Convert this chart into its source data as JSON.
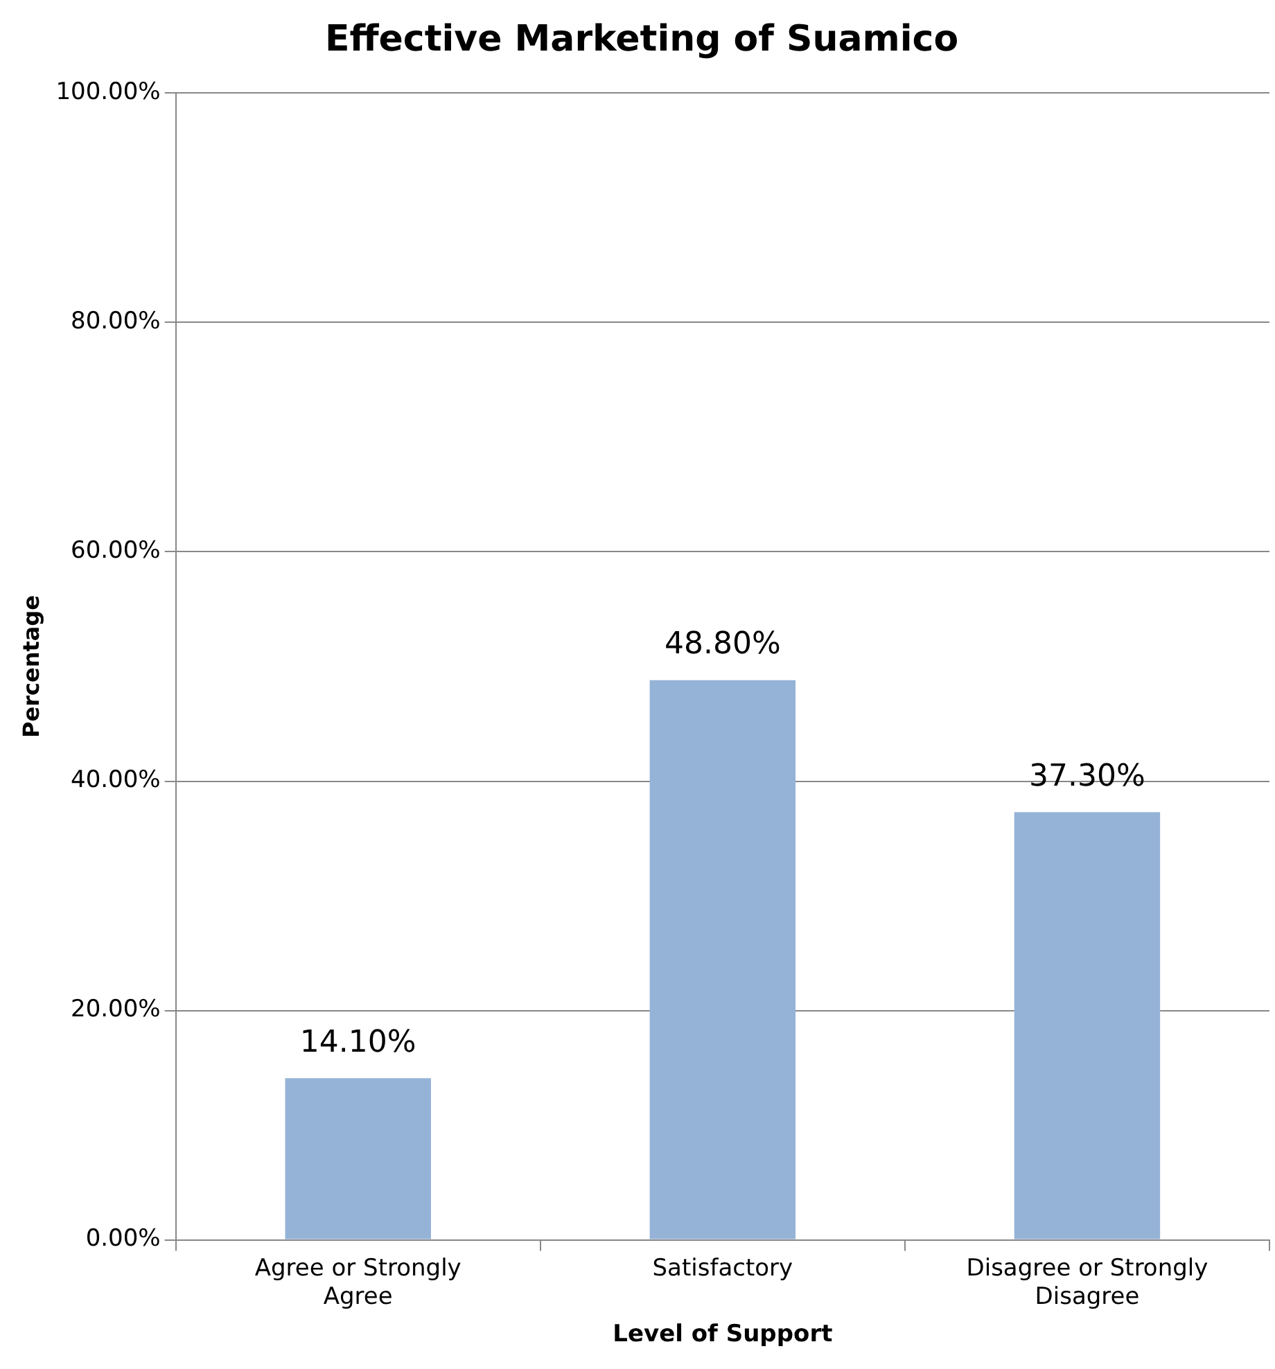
{
  "chart_data": {
    "type": "bar",
    "title": "Effective Marketing of Suamico",
    "xlabel": "Level of Support",
    "ylabel": "Percentage",
    "categories": [
      "Agree or Strongly Agree",
      "Satisfactory",
      "Disagree or Strongly Disagree"
    ],
    "values": [
      14.1,
      48.8,
      37.3
    ],
    "color": "#95b3d7",
    "value_labels": [
      "14.10%",
      "48.80%",
      "37.30%"
    ],
    "ylim": [
      0,
      100
    ],
    "yticks": [
      {
        "value": 0,
        "label": "0.00%"
      },
      {
        "value": 20,
        "label": "20.00%"
      },
      {
        "value": 40,
        "label": "40.00%"
      },
      {
        "value": 60,
        "label": "60.00%"
      },
      {
        "value": 80,
        "label": "80.00%"
      },
      {
        "value": 100,
        "label": "100.00%"
      }
    ],
    "grid": "y",
    "legend": false
  }
}
